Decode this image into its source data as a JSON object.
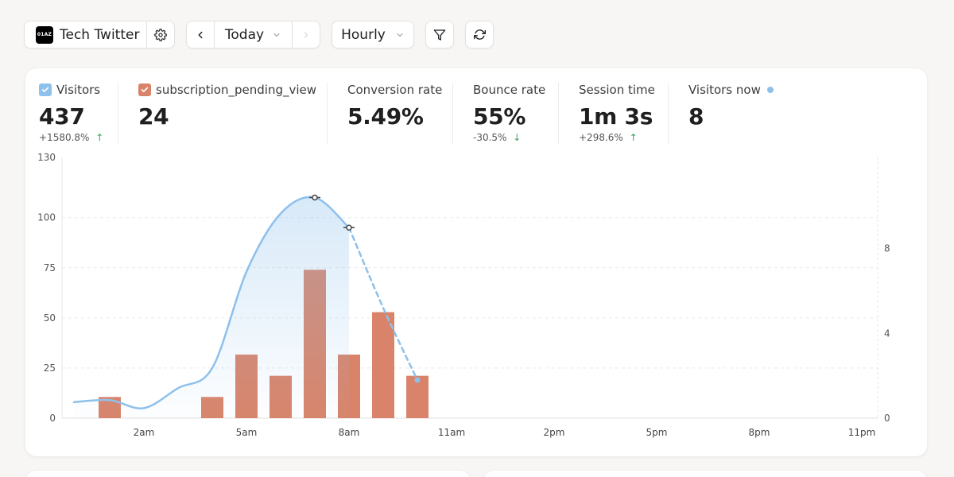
{
  "header": {
    "site_logo_text": "01AZ",
    "site_name": "Tech Twitter",
    "date_label": "Today",
    "interval_label": "Hourly"
  },
  "metrics": {
    "visitors": {
      "label": "Visitors",
      "value": "437",
      "change": "+1580.8%",
      "arrow": "↑"
    },
    "subscription": {
      "label": "subscription_pending_view",
      "value": "24"
    },
    "conversion": {
      "label": "Conversion rate",
      "value": "5.49%"
    },
    "bounce": {
      "label": "Bounce rate",
      "value": "55%",
      "change": "-30.5%",
      "arrow": "↓"
    },
    "session": {
      "label": "Session time",
      "value": "1m 3s",
      "change": "+298.6%",
      "arrow": "↑"
    },
    "now": {
      "label": "Visitors now",
      "value": "8"
    }
  },
  "colors": {
    "visitors_line": "#8ec0ec",
    "bars": "#d9846a",
    "checkbox_visitors": "#8ec0ec",
    "checkbox_subscription": "#d9846a"
  },
  "chart_data": {
    "type": "bar",
    "x_ticks": [
      "2am",
      "5am",
      "8am",
      "11am",
      "2pm",
      "5pm",
      "8pm",
      "11pm"
    ],
    "y_ticks_left": [
      "0",
      "25",
      "50",
      "75",
      "100",
      "130"
    ],
    "y_ticks_right": [
      "0",
      "4",
      "8"
    ],
    "ylim_left": [
      0,
      130
    ],
    "ylim_right": [
      0,
      12.3
    ],
    "visitors_series": {
      "name": "Visitors",
      "hours": [
        -0.05,
        1,
        2,
        3,
        4,
        5,
        6,
        7,
        8,
        9,
        10
      ],
      "values": [
        8,
        9,
        5,
        15,
        25,
        73,
        102,
        110,
        95,
        55,
        19
      ],
      "dashed_from_hour": 9,
      "marked_hours": [
        7,
        8
      ]
    },
    "subscription_series": {
      "name": "subscription_pending_view",
      "hours": [
        1,
        4,
        5,
        6,
        7,
        8,
        9,
        10
      ],
      "values": [
        1,
        1,
        3,
        2,
        7,
        3,
        5,
        2
      ]
    }
  }
}
